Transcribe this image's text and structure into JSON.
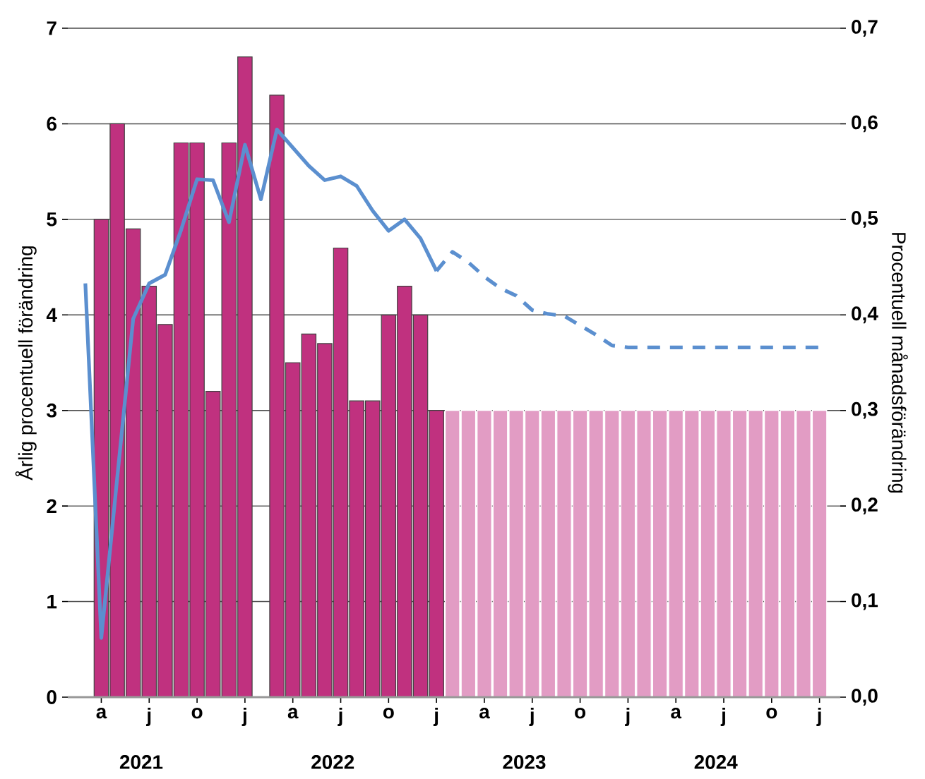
{
  "chart_data": {
    "type": "bar",
    "ylabel": "Årlig procentuell förändring",
    "y2label": "Procentuell månadsförändring",
    "categories": [
      null,
      "a",
      null,
      null,
      "j",
      null,
      null,
      "o",
      null,
      null,
      "j",
      null,
      null,
      "a",
      null,
      null,
      "j",
      null,
      null,
      "o",
      null,
      null,
      "j",
      null,
      null,
      "a",
      null,
      null,
      "j",
      null,
      null,
      "o",
      null,
      null,
      "j",
      null,
      null,
      "a",
      null,
      null,
      "j",
      null,
      null,
      "o",
      null,
      null,
      "j"
    ],
    "annotations": [
      "2021",
      "2022",
      "2023",
      "2024"
    ],
    "series": [
      {
        "axis": "y2",
        "colors": [
          "#c0317f",
          "#c0317f",
          "#c0317f",
          "#c0317f",
          "#c0317f",
          "#c0317f",
          "#c0317f",
          "#c0317f",
          "#c0317f",
          "#c0317f",
          "#c0317f",
          "#c0317f",
          "#c0317f",
          "#c0317f",
          "#c0317f",
          "#c0317f",
          "#c0317f",
          "#c0317f",
          "#c0317f",
          "#c0317f",
          "#c0317f",
          "#c0317f",
          "#c0317f",
          "#e29cc4",
          "#e29cc4",
          "#e29cc4",
          "#e29cc4",
          "#e29cc4",
          "#e29cc4",
          "#e29cc4",
          "#e29cc4",
          "#e29cc4",
          "#e29cc4",
          "#e29cc4",
          "#e29cc4",
          "#e29cc4",
          "#e29cc4",
          "#e29cc4",
          "#e29cc4",
          "#e29cc4",
          "#e29cc4",
          "#e29cc4",
          "#e29cc4",
          "#e29cc4",
          "#e29cc4",
          "#e29cc4",
          "#e29cc4"
        ],
        "values": [
          null,
          0.5,
          0.6,
          0.49,
          0.43,
          0.39,
          0.58,
          0.58,
          0.32,
          0.58,
          0.67,
          null,
          0.63,
          0.35,
          0.38,
          0.37,
          0.47,
          0.31,
          0.31,
          0.4,
          0.43,
          0.4,
          0.3,
          0.3,
          0.3,
          0.3,
          0.3,
          0.3,
          0.3,
          0.3,
          0.3,
          0.3,
          0.3,
          0.3,
          0.3,
          0.3,
          0.3,
          0.3,
          0.3,
          0.3,
          0.3,
          0.3,
          0.3,
          0.3,
          0.3,
          0.3,
          0.3
        ]
      },
      {
        "type": "line",
        "color": "#5b8fcf",
        "line_style": "solid",
        "values": [
          4.33,
          0.62,
          2.3,
          3.96,
          4.33,
          4.42,
          4.89,
          5.42,
          5.41,
          4.97,
          5.78,
          5.21,
          5.94,
          5.75,
          5.56,
          5.41,
          5.45,
          5.35,
          5.09,
          4.88,
          5.0,
          4.8,
          4.46,
          null,
          null,
          null,
          null,
          null,
          null,
          null,
          null,
          null,
          null,
          null,
          null,
          null,
          null,
          null,
          null,
          null,
          null,
          null,
          null,
          null,
          null,
          null,
          null
        ]
      },
      {
        "type": "line",
        "color": "#5b8fcf",
        "line_style": "dashed",
        "values": [
          null,
          null,
          null,
          null,
          null,
          null,
          null,
          null,
          null,
          null,
          null,
          null,
          null,
          null,
          null,
          null,
          null,
          null,
          null,
          null,
          null,
          null,
          4.46,
          4.66,
          4.55,
          4.4,
          4.28,
          4.2,
          4.05,
          4.01,
          3.99,
          3.89,
          3.79,
          3.68,
          3.66,
          3.66,
          3.66,
          3.66,
          3.66,
          3.66,
          3.66,
          3.66,
          3.66,
          3.66,
          3.66,
          3.66,
          3.66
        ]
      }
    ],
    "ylim": [
      0,
      7
    ],
    "yticks": [
      0,
      1,
      2,
      3,
      4,
      5,
      6,
      7
    ],
    "y2lim": [
      0,
      0.7
    ],
    "y2ticks": [
      {
        "value": 0,
        "label": "0,0"
      },
      {
        "value": 0.1,
        "label": "0,1"
      },
      {
        "value": 0.2,
        "label": "0,2"
      },
      {
        "value": 0.3,
        "label": "0,3"
      },
      {
        "value": 0.4,
        "label": "0,4"
      },
      {
        "value": 0.5,
        "label": "0,5"
      },
      {
        "value": 0.6,
        "label": "0,6"
      },
      {
        "value": 0.7,
        "label": "0,7"
      }
    ],
    "grid": "y"
  }
}
